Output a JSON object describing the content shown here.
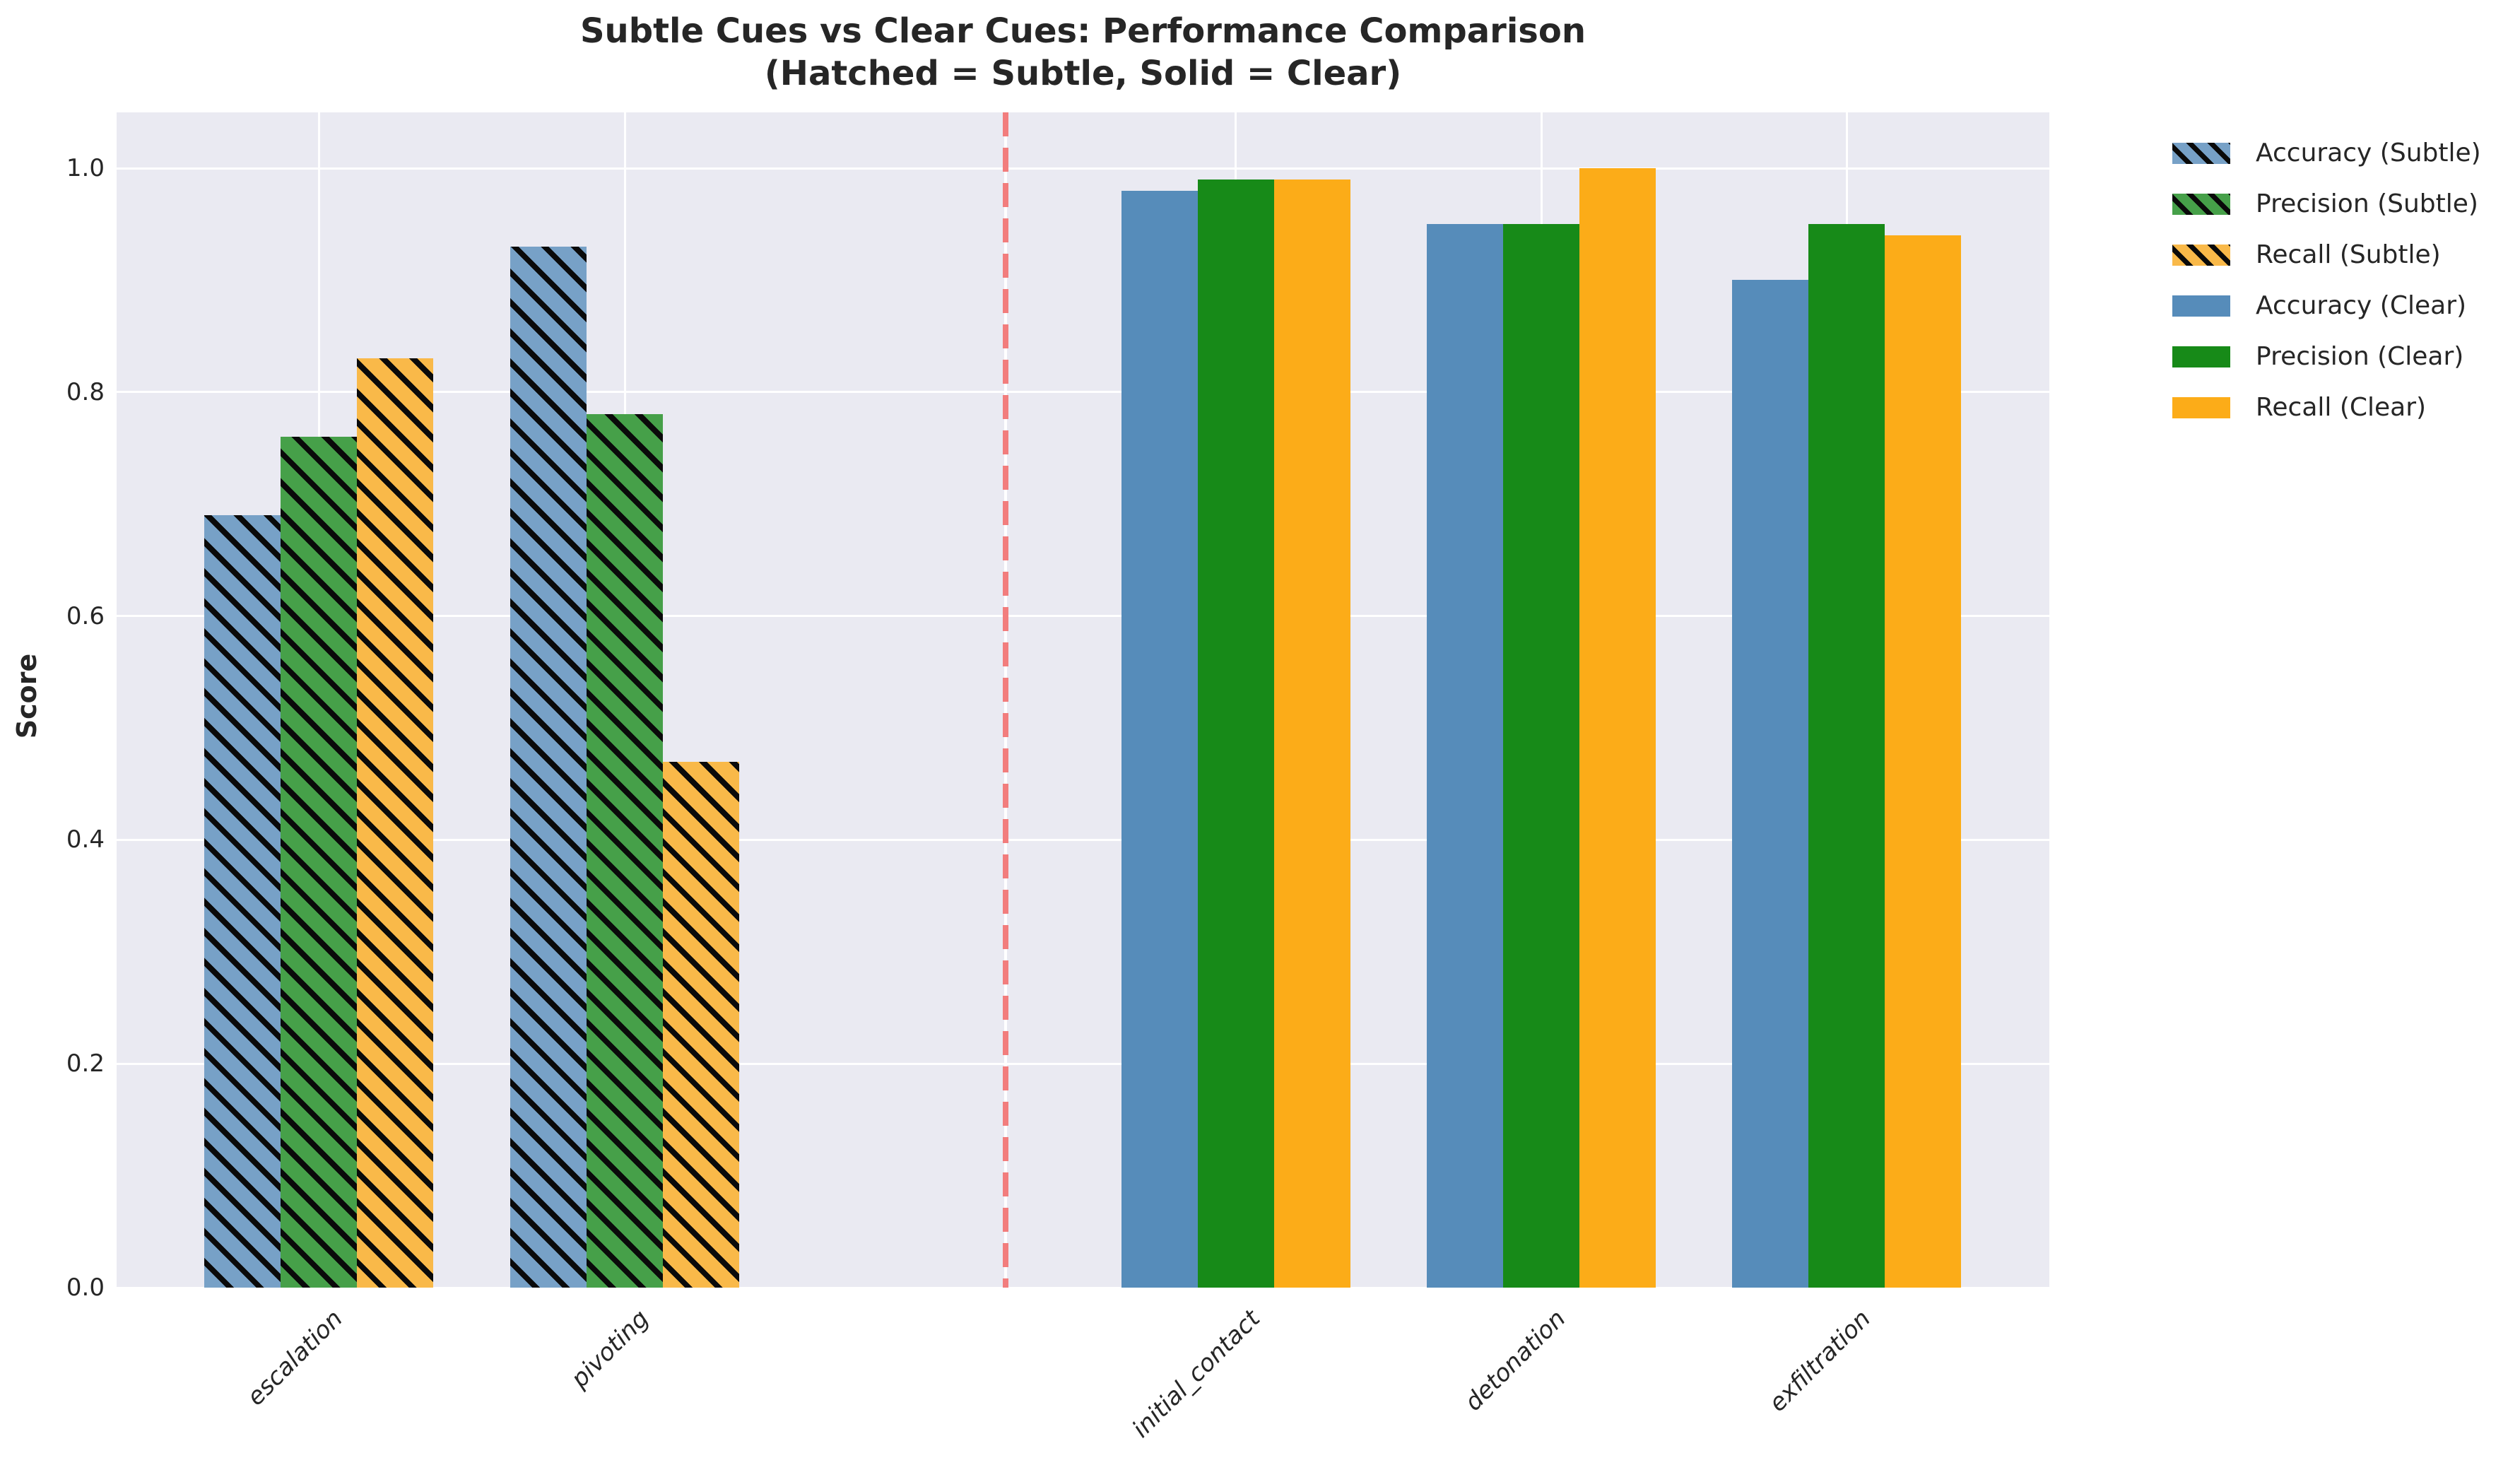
{
  "title": {
    "line1": "Subtle Cues vs Clear Cues: Performance Comparison",
    "line2": "(Hatched = Subtle, Solid = Clear)"
  },
  "axes": {
    "ylabel": "Score",
    "ytick_labels": [
      "0.0",
      "0.2",
      "0.4",
      "0.6",
      "0.8",
      "1.0"
    ],
    "xtick_labels": [
      "escalation",
      "pivoting",
      "initial_contact",
      "detonation",
      "exfiltration"
    ]
  },
  "chart_data": {
    "type": "bar",
    "title": "Subtle Cues vs Clear Cues: Performance Comparison (Hatched = Subtle, Solid = Clear)",
    "xlabel": "",
    "ylabel": "Score",
    "ylim": [
      0,
      1.05
    ],
    "yticks": [
      0.0,
      0.2,
      0.4,
      0.6,
      0.8,
      1.0
    ],
    "grid": true,
    "plot_background": "#eaeaf2",
    "gridline_color": "#ffffff",
    "categories": [
      "escalation",
      "pivoting",
      "initial_contact",
      "detonation",
      "exfiltration"
    ],
    "series": [
      {
        "name": "Accuracy (Subtle)",
        "metric": "Accuracy",
        "cue_type": "Subtle",
        "style": "hatched",
        "color": "#77a1c7",
        "data": {
          "escalation": 0.69,
          "pivoting": 0.93
        }
      },
      {
        "name": "Precision (Subtle)",
        "metric": "Precision",
        "cue_type": "Subtle",
        "style": "hatched",
        "color": "#46a049",
        "data": {
          "escalation": 0.76,
          "pivoting": 0.78
        }
      },
      {
        "name": "Recall (Subtle)",
        "metric": "Recall",
        "cue_type": "Subtle",
        "style": "hatched",
        "color": "#f9b949",
        "data": {
          "escalation": 0.83,
          "pivoting": 0.47
        }
      },
      {
        "name": "Accuracy (Clear)",
        "metric": "Accuracy",
        "cue_type": "Clear",
        "style": "solid",
        "color": "#568cba",
        "data": {
          "initial_contact": 0.98,
          "detonation": 0.95,
          "exfiltration": 0.9
        }
      },
      {
        "name": "Precision (Clear)",
        "metric": "Precision",
        "cue_type": "Clear",
        "style": "solid",
        "color": "#178a18",
        "data": {
          "initial_contact": 0.99,
          "detonation": 0.95,
          "exfiltration": 0.95
        }
      },
      {
        "name": "Recall (Clear)",
        "metric": "Recall",
        "cue_type": "Clear",
        "style": "solid",
        "color": "#fcac18",
        "data": {
          "initial_contact": 0.99,
          "detonation": 1.0,
          "exfiltration": 0.94
        }
      }
    ],
    "divider": {
      "orientation": "vertical",
      "style": "dashed",
      "color": "#f27d7d",
      "between": [
        "pivoting",
        "initial_contact"
      ]
    },
    "legend": {
      "position": "outside-right-top",
      "entries": [
        "Accuracy (Subtle)",
        "Precision (Subtle)",
        "Recall (Subtle)",
        "Accuracy (Clear)",
        "Precision (Clear)",
        "Recall (Clear)"
      ]
    },
    "hatch_pattern": "/"
  }
}
